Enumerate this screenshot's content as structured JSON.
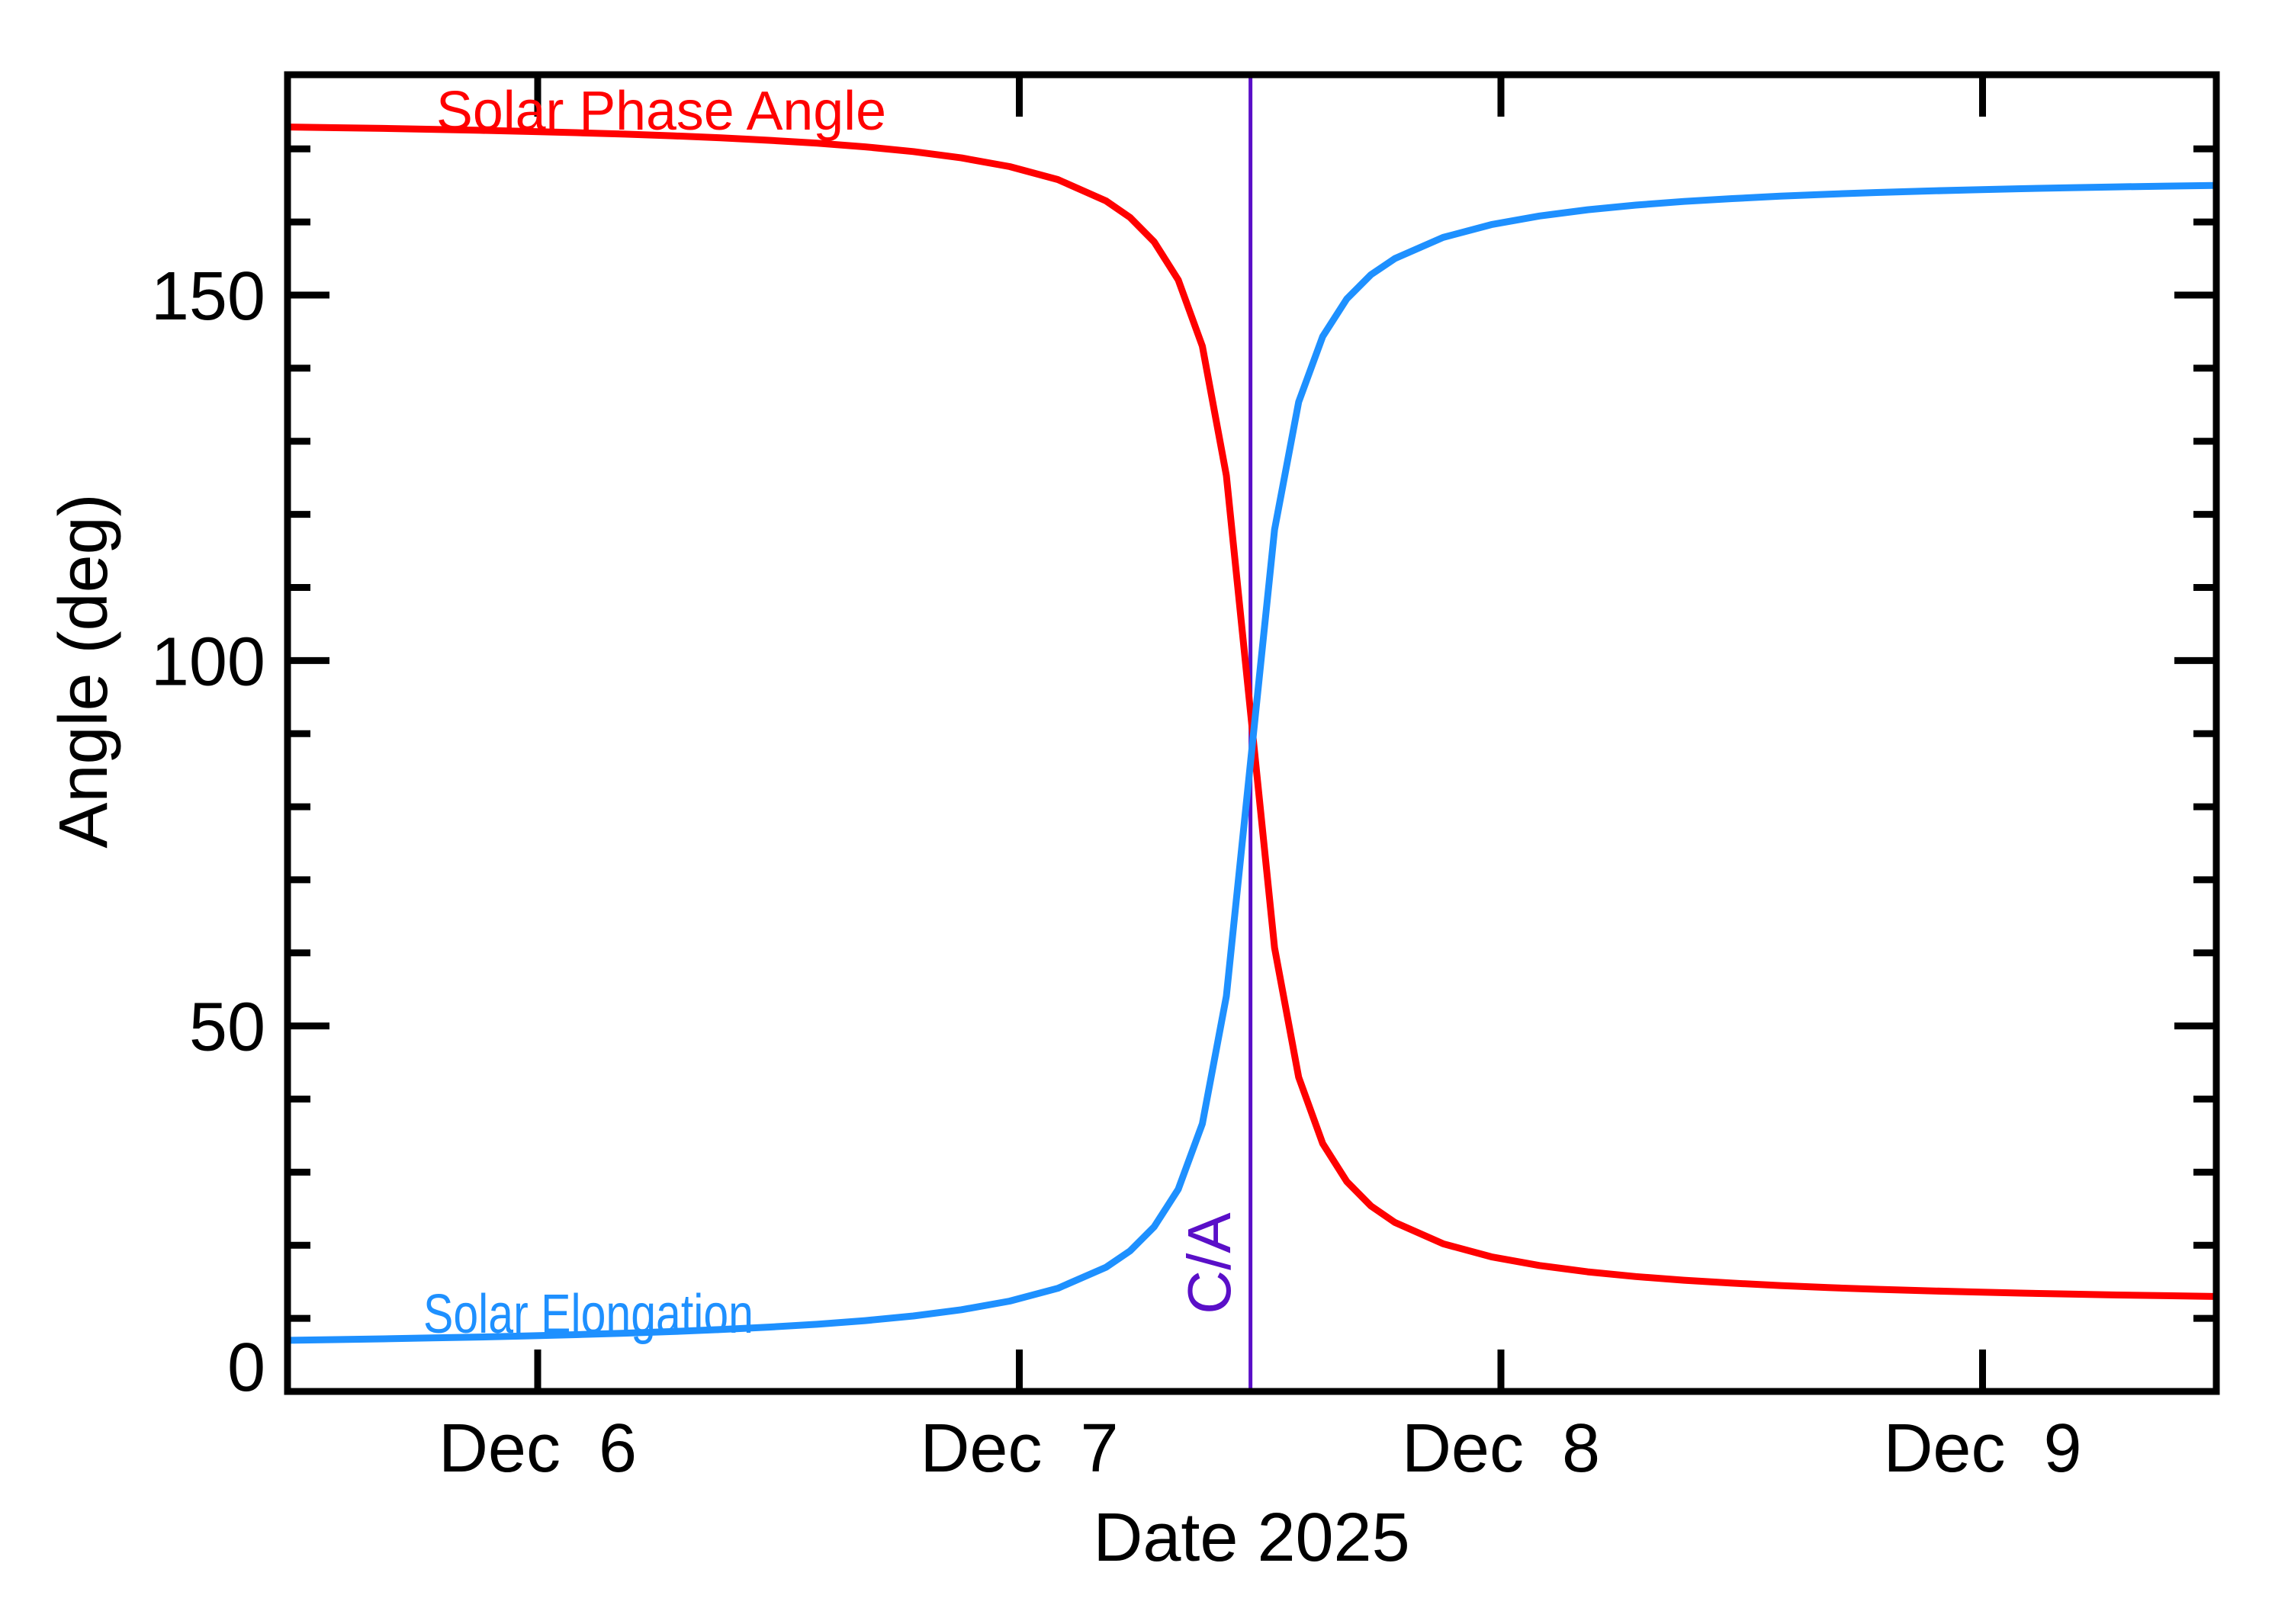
{
  "labels": {
    "phase": "Solar Phase Angle",
    "elongation": "Solar Elongation",
    "ca": "C/A",
    "xlabel": "Date 2025",
    "ylabel": "Angle (deg)"
  },
  "colors": {
    "phase": "#ff0000",
    "elongation": "#1e90ff",
    "closest_approach": "#5a0fc8",
    "axis": "#000000",
    "background": "#ffffff"
  },
  "chart_data": {
    "type": "line",
    "title": "",
    "xlabel": "Date 2025",
    "ylabel": "Angle (deg)",
    "legend_position": "labels-on-curves",
    "grid": false,
    "x_axis": {
      "unit": "date (December 2025, decimal days)",
      "start_date_dec": 5.48,
      "end_date_dec": 9.48,
      "tick_dates": [
        6,
        7,
        8,
        9
      ],
      "tick_labels": [
        "Dec  6",
        "Dec  7",
        "Dec  8",
        "Dec  9"
      ]
    },
    "y_axis": {
      "min": 0,
      "max": 180,
      "major_ticks": [
        0,
        50,
        100,
        150
      ],
      "major_tick_labels": [
        "0",
        "50",
        "100",
        "150"
      ],
      "minor_tick_step_deg": 10
    },
    "annotations": {
      "closest_approach": {
        "label": "C/A",
        "date_dec": 7.48,
        "color": "#5a0fc8",
        "line_full_height": true
      },
      "crossing_point": {
        "date_dec": 7.49,
        "angle_deg": 90
      }
    },
    "t_offsets_days_from_ca": [
      -2,
      -1.9,
      -1.8,
      -1.7,
      -1.6,
      -1.5,
      -1.4,
      -1.3,
      -1.2,
      -1.1,
      -1,
      -0.9,
      -0.8,
      -0.7,
      -0.6,
      -0.5,
      -0.4,
      -0.3,
      -0.25,
      -0.2,
      -0.15,
      -0.1,
      -0.05,
      0,
      0.05,
      0.1,
      0.15,
      0.2,
      0.25,
      0.3,
      0.4,
      0.5,
      0.6,
      0.7,
      0.8,
      0.9,
      1,
      1.1,
      1.2,
      1.3,
      1.4,
      1.5,
      1.6,
      1.7,
      1.8,
      1.9,
      2
    ],
    "series": [
      {
        "name": "Solar Phase Angle",
        "color": "#ff0000",
        "values_deg": [
          173.0,
          172.9,
          172.8,
          172.68,
          172.54,
          172.39,
          172.22,
          172.02,
          171.79,
          171.51,
          171.18,
          170.78,
          170.28,
          169.63,
          168.77,
          167.58,
          165.8,
          162.88,
          160.62,
          157.28,
          152.08,
          143.01,
          125.31,
          93.0,
          60.69,
          42.99,
          33.92,
          28.72,
          25.38,
          23.12,
          20.2,
          18.42,
          17.23,
          16.37,
          15.72,
          15.22,
          14.82,
          14.49,
          14.21,
          13.98,
          13.78,
          13.61,
          13.46,
          13.32,
          13.2,
          13.1,
          13.0
        ]
      },
      {
        "name": "Solar Elongation",
        "color": "#1e90ff",
        "values_deg": [
          7.0,
          7.09,
          7.2,
          7.32,
          7.45,
          7.6,
          7.77,
          7.97,
          8.2,
          8.47,
          8.8,
          9.19,
          9.69,
          10.33,
          11.18,
          12.36,
          14.11,
          16.99,
          19.22,
          22.52,
          27.66,
          36.62,
          54.09,
          86.0,
          117.91,
          135.38,
          144.34,
          149.48,
          152.78,
          155.01,
          157.89,
          159.64,
          160.82,
          161.67,
          162.31,
          162.81,
          163.2,
          163.53,
          163.8,
          164.03,
          164.23,
          164.4,
          164.55,
          164.68,
          164.8,
          164.91,
          165.0
        ]
      }
    ]
  }
}
